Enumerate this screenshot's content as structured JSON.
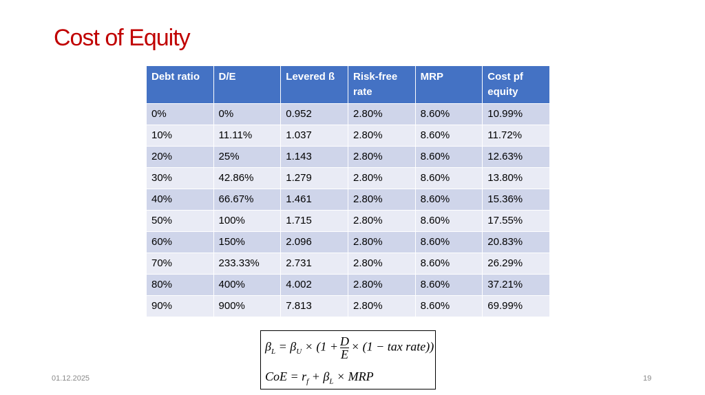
{
  "title": "Cost of Equity",
  "table": {
    "header": [
      "Debt ratio",
      "D/E",
      "Levered ß",
      "Risk-free rate",
      "MRP",
      "Cost pf equity"
    ],
    "rows": [
      [
        "0%",
        "0%",
        "0.952",
        "2.80%",
        "8.60%",
        "10.99%"
      ],
      [
        "10%",
        "11.11%",
        "1.037",
        "2.80%",
        "8.60%",
        "11.72%"
      ],
      [
        "20%",
        "25%",
        "1.143",
        "2.80%",
        "8.60%",
        "12.63%"
      ],
      [
        "30%",
        "42.86%",
        "1.279",
        "2.80%",
        "8.60%",
        "13.80%"
      ],
      [
        "40%",
        "66.67%",
        "1.461",
        "2.80%",
        "8.60%",
        "15.36%"
      ],
      [
        "50%",
        "100%",
        "1.715",
        "2.80%",
        "8.60%",
        "17.55%"
      ],
      [
        "60%",
        "150%",
        "2.096",
        "2.80%",
        "8.60%",
        "20.83%"
      ],
      [
        "70%",
        "233.33%",
        "2.731",
        "2.80%",
        "8.60%",
        "26.29%"
      ],
      [
        "80%",
        "400%",
        "4.002",
        "2.80%",
        "8.60%",
        "37.21%"
      ],
      [
        "90%",
        "900%",
        "7.813",
        "2.80%",
        "8.60%",
        "69.99%"
      ]
    ]
  },
  "formula": {
    "line1": [
      "β",
      "L",
      "= β",
      "U",
      "× (1 +",
      "D",
      "E",
      "× (1 − tax rate))"
    ],
    "line2": [
      "CoE = r",
      "f",
      "+ β",
      "L",
      "× MRP"
    ]
  },
  "footer": {
    "date": "01.12.2025",
    "page": "19"
  }
}
